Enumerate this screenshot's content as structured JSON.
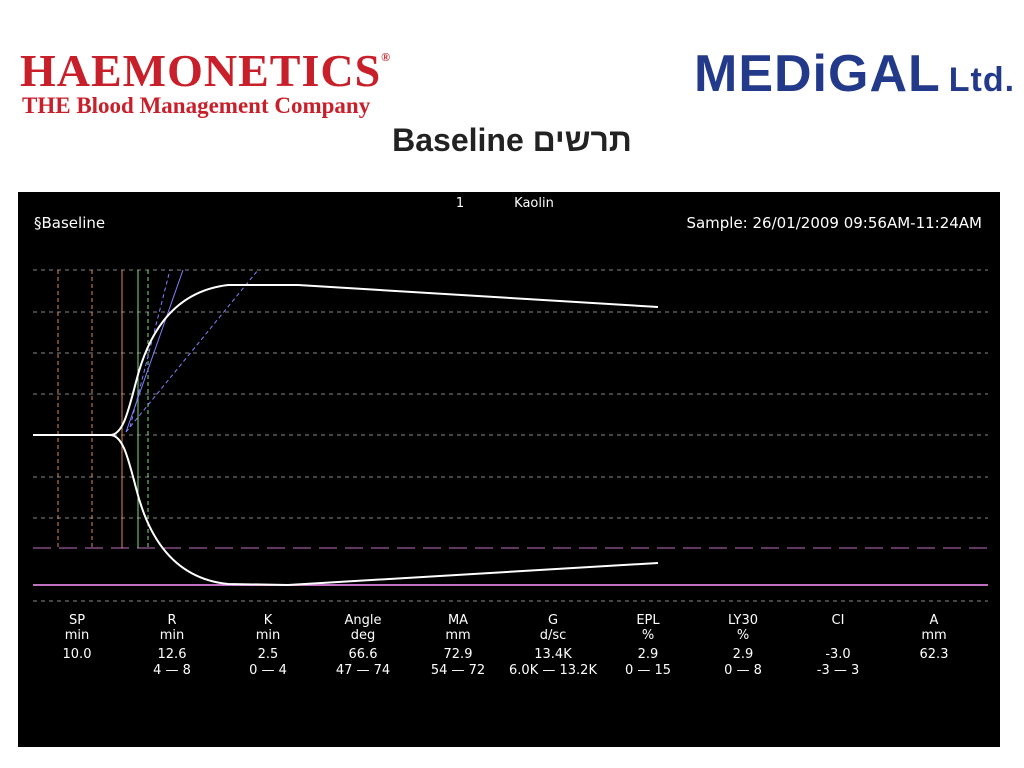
{
  "header": {
    "brand_left": "HAEMONETICS",
    "brand_left_mark": "®",
    "brand_left_tagline": "THE Blood Management Company",
    "brand_right": "MEDiGAL",
    "brand_right_suffix": "Ltd.",
    "title": "תרשים Baseline"
  },
  "screen": {
    "channel": "1",
    "reagent": "Kaolin",
    "trace_name": "§Baseline",
    "sample": "Sample: 26/01/2009 09:56AM-11:24AM",
    "params": [
      {
        "name": "SP",
        "unit": "min",
        "value": "10.0"
      },
      {
        "name": "R",
        "unit": "min",
        "value": "12.6",
        "range": "4 — 8"
      },
      {
        "name": "K",
        "unit": "min",
        "value": "2.5",
        "range": "0 — 4"
      },
      {
        "name": "Angle",
        "unit": "deg",
        "value": "66.6",
        "range": "47 — 74"
      },
      {
        "name": "MA",
        "unit": "mm",
        "value": "72.9",
        "range": "54 — 72"
      },
      {
        "name": "G",
        "unit": "d/sc",
        "value": "13.4K",
        "range": "6.0K — 13.2K"
      },
      {
        "name": "EPL",
        "unit": "%",
        "value": "2.9",
        "range": "0 — 15"
      },
      {
        "name": "LY30",
        "unit": "%",
        "value": "2.9",
        "range": "0 — 8"
      },
      {
        "name": "CI",
        "unit": "",
        "value": "-3.0",
        "range": "-3 — 3"
      },
      {
        "name": "A",
        "unit": "mm",
        "value": "62.3"
      }
    ]
  }
}
